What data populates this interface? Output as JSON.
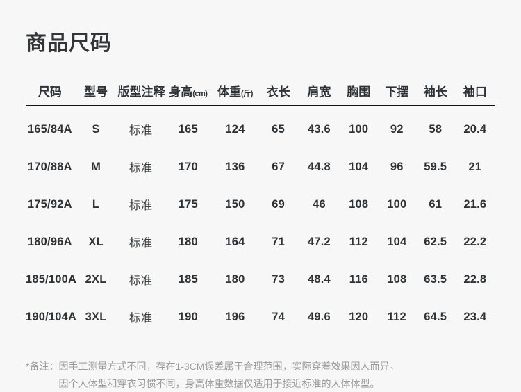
{
  "page": {
    "title": "商品尺码",
    "background_color": "#f7f7f7",
    "text_color": "#33373a",
    "rule_color": "#141414",
    "note_color": "#9b9b9b"
  },
  "table": {
    "headers": [
      {
        "label": "尺码",
        "unit": ""
      },
      {
        "label": "型号",
        "unit": ""
      },
      {
        "label": "版型注释",
        "unit": ""
      },
      {
        "label": "身高",
        "unit": "(cm)"
      },
      {
        "label": "体重",
        "unit": "(斤)"
      },
      {
        "label": "衣长",
        "unit": ""
      },
      {
        "label": "肩宽",
        "unit": ""
      },
      {
        "label": "胸围",
        "unit": ""
      },
      {
        "label": "下摆",
        "unit": ""
      },
      {
        "label": "袖长",
        "unit": ""
      },
      {
        "label": "袖口",
        "unit": ""
      }
    ],
    "rows": [
      [
        "165/84A",
        "S",
        "标准",
        "165",
        "124",
        "65",
        "43.6",
        "100",
        "92",
        "58",
        "20.4"
      ],
      [
        "170/88A",
        "M",
        "标准",
        "170",
        "136",
        "67",
        "44.8",
        "104",
        "96",
        "59.5",
        "21"
      ],
      [
        "175/92A",
        "L",
        "标准",
        "175",
        "150",
        "69",
        "46",
        "108",
        "100",
        "61",
        "21.6"
      ],
      [
        "180/96A",
        "XL",
        "标准",
        "180",
        "164",
        "71",
        "47.2",
        "112",
        "104",
        "62.5",
        "22.2"
      ],
      [
        "185/100A",
        "2XL",
        "标准",
        "185",
        "180",
        "73",
        "48.4",
        "116",
        "108",
        "63.5",
        "22.8"
      ],
      [
        "190/104A",
        "3XL",
        "标准",
        "190",
        "196",
        "74",
        "49.6",
        "120",
        "112",
        "64.5",
        "23.4"
      ]
    ]
  },
  "note": {
    "prefix": "*备注：",
    "line1": "因手工测量方式不同，存在1-3CM误差属于合理范围，实际穿着效果因人而异。",
    "line2": "因个人体型和穿衣习惯不同，身高体重数据仅适用于接近标准的人体体型。"
  }
}
